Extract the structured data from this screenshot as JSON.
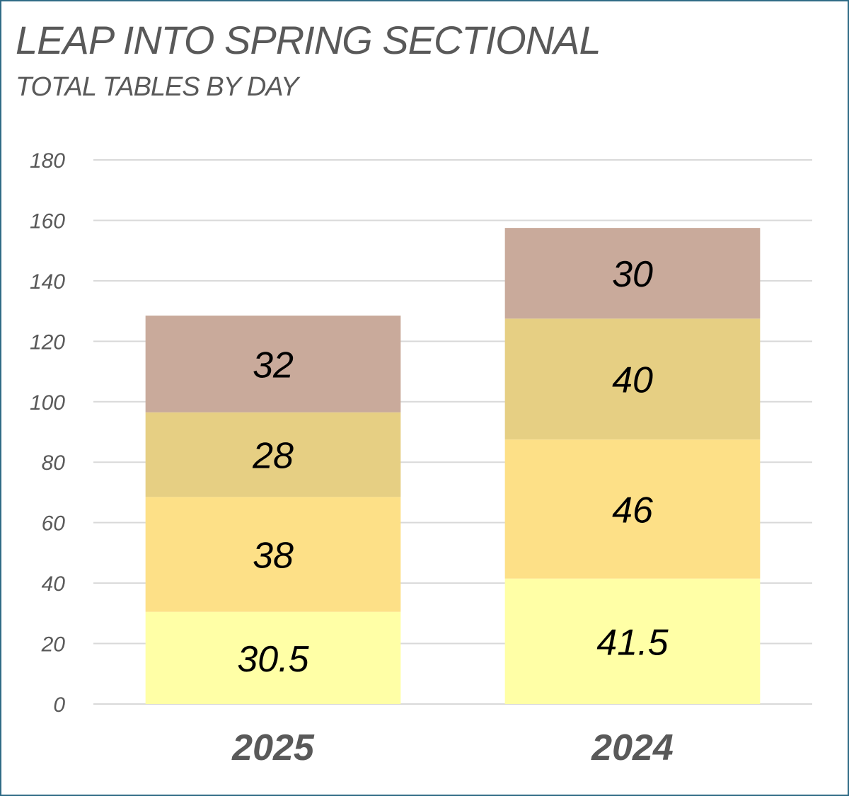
{
  "chart_data": {
    "type": "bar",
    "stacked": true,
    "title": "LEAP INTO SPRING SECTIONAL",
    "subtitle": "TOTAL TABLES BY DAY",
    "categories": [
      "2025",
      "2024"
    ],
    "series": [
      {
        "values": [
          30.5,
          41.5
        ],
        "color": "#ffffa6"
      },
      {
        "values": [
          38,
          46
        ],
        "color": "#fde087"
      },
      {
        "values": [
          28,
          40
        ],
        "color": "#e6cf83"
      },
      {
        "values": [
          32,
          30
        ],
        "color": "#c9aa9b"
      }
    ],
    "ylim": [
      0,
      180
    ],
    "yticks": [
      "0",
      "20",
      "40",
      "60",
      "80",
      "100",
      "120",
      "140",
      "160",
      "180"
    ],
    "grid": true,
    "legend": "none"
  }
}
